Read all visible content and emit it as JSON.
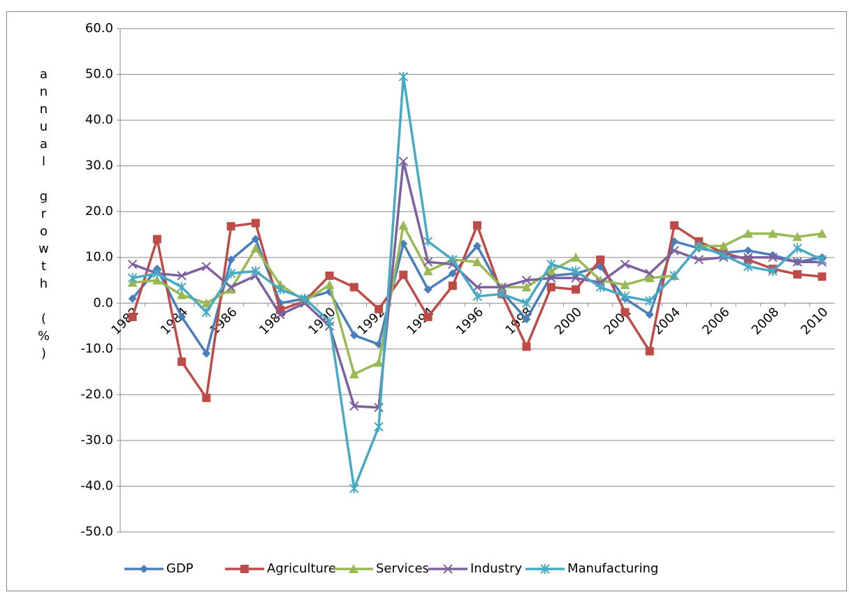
{
  "chart_data": {
    "type": "line",
    "y_label": "annual growth (%)",
    "categories": [
      "1982",
      null,
      "1984",
      null,
      "1986",
      null,
      "1988",
      null,
      "1990",
      null,
      "1992",
      null,
      "1994",
      null,
      "1996",
      null,
      "1998",
      null,
      "2000",
      null,
      "2002",
      null,
      "2004",
      null,
      "2006",
      null,
      "2008",
      null,
      "2010"
    ],
    "ylim": [
      -50,
      60
    ],
    "yticks": [
      {
        "value": -50,
        "label": "-50.0"
      },
      {
        "value": -40,
        "label": "-40.0"
      },
      {
        "value": -30,
        "label": "-30.0"
      },
      {
        "value": -20,
        "label": "-20.0"
      },
      {
        "value": -10,
        "label": "-10.0"
      },
      {
        "value": 0,
        "label": "0.0"
      },
      {
        "value": 10,
        "label": "10.0"
      },
      {
        "value": 20,
        "label": "20.0"
      },
      {
        "value": 30,
        "label": "30.0"
      },
      {
        "value": 40,
        "label": "40.0"
      },
      {
        "value": 50,
        "label": "50.0"
      },
      {
        "value": 60,
        "label": "60.0"
      }
    ],
    "grid": true,
    "legend": "bottom",
    "series": [
      {
        "name": "GDP",
        "color": "#4a7ebb",
        "marker": "diamond",
        "values": [
          1.0,
          7.5,
          -3.0,
          -11.0,
          9.5,
          14.0,
          0.0,
          1.0,
          2.5,
          -7.0,
          -9.0,
          13.0,
          3.0,
          6.5,
          12.5,
          2.5,
          -3.5,
          6.0,
          6.5,
          8.0,
          1.0,
          -2.5,
          13.5,
          12.0,
          11.0,
          11.5,
          10.5,
          9.0,
          10.0
        ]
      },
      {
        "name": "Agriculture",
        "color": "#be4b48",
        "marker": "square",
        "values": [
          -3.0,
          14.0,
          -12.8,
          -20.7,
          16.8,
          17.5,
          -1.5,
          0.5,
          6.0,
          3.5,
          -1.3,
          6.2,
          -3.0,
          3.8,
          17.0,
          2.0,
          -9.5,
          3.5,
          3.0,
          9.5,
          -2.0,
          -10.5,
          17.0,
          13.5,
          11.0,
          9.5,
          7.5,
          6.3,
          5.8
        ]
      },
      {
        "name": "Services",
        "color": "#98b954",
        "marker": "triangle",
        "values": [
          4.5,
          5.0,
          1.8,
          0.0,
          3.0,
          12.0,
          4.0,
          0.5,
          4.0,
          -15.5,
          -13.0,
          17.0,
          7.0,
          9.5,
          9.0,
          3.5,
          3.5,
          7.0,
          10.0,
          5.0,
          4.0,
          5.5,
          6.0,
          12.5,
          12.5,
          15.2,
          15.2,
          14.5,
          15.2
        ]
      },
      {
        "name": "Industry",
        "color": "#7d60a0",
        "marker": "x",
        "values": [
          8.5,
          6.5,
          6.0,
          8.0,
          3.5,
          6.0,
          -2.5,
          0.0,
          -5.0,
          -22.5,
          -22.8,
          31.0,
          9.0,
          8.5,
          3.5,
          3.5,
          5.0,
          5.5,
          5.5,
          4.5,
          8.5,
          6.5,
          11.5,
          9.5,
          10.0,
          10.0,
          10.0,
          9.0,
          9.0
        ]
      },
      {
        "name": "Manufacturing",
        "color": "#46aac5",
        "marker": "star",
        "values": [
          5.5,
          6.5,
          3.5,
          -2.0,
          6.5,
          7.0,
          3.0,
          1.0,
          -4.0,
          -40.5,
          -27.0,
          49.5,
          13.5,
          9.5,
          1.5,
          2.0,
          0.0,
          8.5,
          7.0,
          3.5,
          1.5,
          0.5,
          6.0,
          12.5,
          10.5,
          8.0,
          7.0,
          12.0,
          9.5
        ]
      }
    ]
  }
}
